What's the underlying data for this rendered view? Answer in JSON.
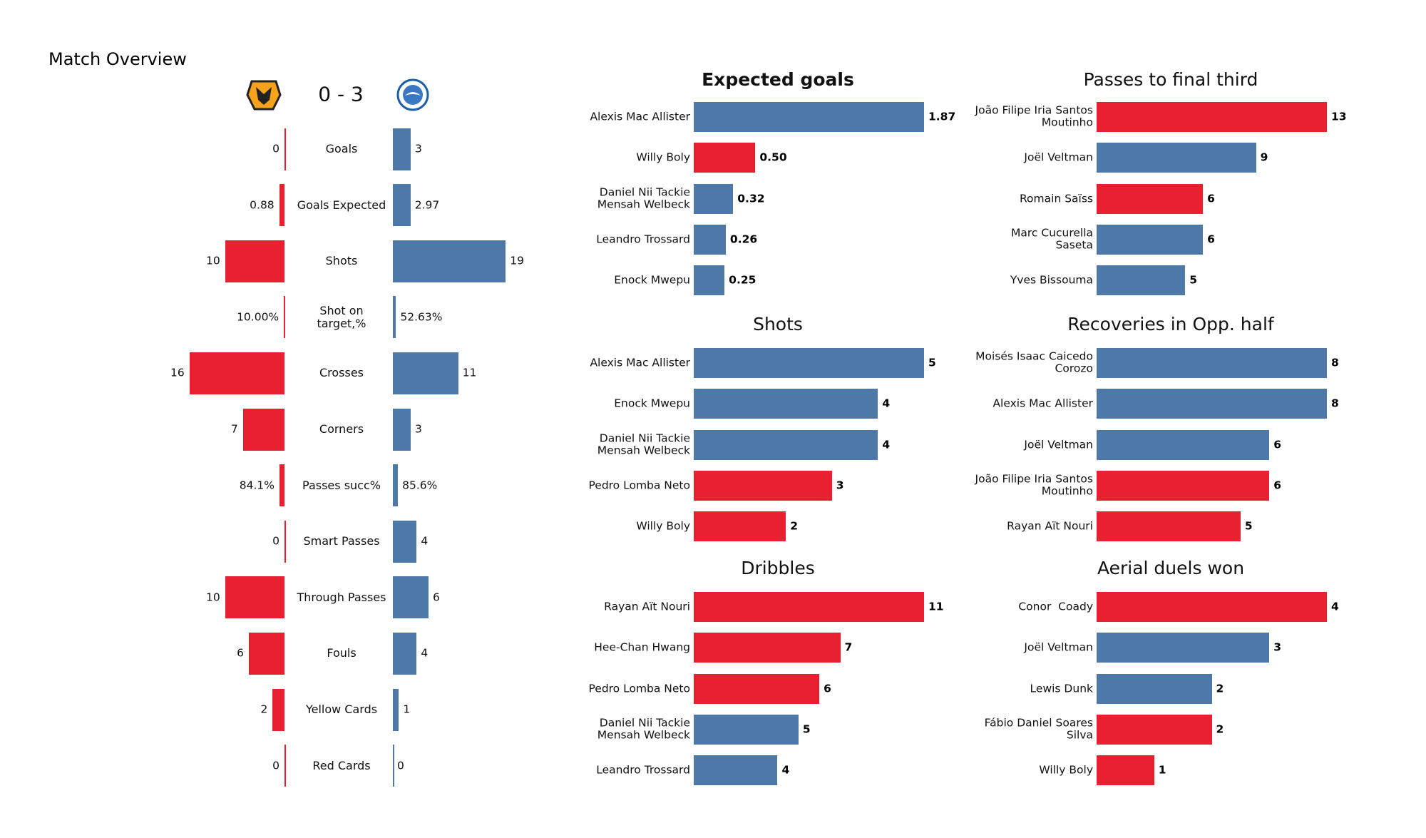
{
  "chart_data": [
    {
      "type": "butterfly",
      "title": "Match Overview",
      "score": "0 - 3",
      "categories": [
        "Goals",
        "Goals Expected",
        "Shots",
        "Shot on\ntarget,%",
        "Crosses",
        "Corners",
        "Passes succ%",
        "Smart Passes",
        "Through Passes",
        "Fouls",
        "Yellow Cards",
        "Red Cards"
      ],
      "series": [
        {
          "color": "#e8202f",
          "values": [
            0,
            0.88,
            10,
            10.0,
            16,
            7,
            84.1,
            0,
            10,
            6,
            2,
            0
          ],
          "value_labels": [
            "0",
            "0.88",
            "10",
            "10.00%",
            "16",
            "7",
            "84.1%",
            "0",
            "10",
            "6",
            "2",
            "0"
          ]
        },
        {
          "color": "#4e78a8",
          "values": [
            3,
            2.97,
            19,
            52.63,
            11,
            3,
            85.6,
            4,
            6,
            4,
            1,
            0
          ],
          "value_labels": [
            "3",
            "2.97",
            "19",
            "52.63%",
            "11",
            "3",
            "85.6%",
            "4",
            "6",
            "4",
            "1",
            "0"
          ]
        }
      ]
    },
    {
      "type": "barh",
      "title": "Expected goals",
      "categories": [
        "Alexis Mac Allister",
        "Willy Boly",
        "Daniel Nii Tackie\nMensah Welbeck",
        "Leandro Trossard",
        "Enock Mwepu"
      ],
      "values": [
        1.87,
        0.5,
        0.32,
        0.26,
        0.25
      ],
      "value_labels": [
        "1.87",
        "0.50",
        "0.32",
        "0.26",
        "0.25"
      ],
      "colors": [
        "#4e78a8",
        "#e8202f",
        "#4e78a8",
        "#4e78a8",
        "#4e78a8"
      ]
    },
    {
      "type": "barh",
      "title": "Passes to final third",
      "categories": [
        "João Filipe Iria Santos\nMoutinho",
        "Joël Veltman",
        "Romain Saïss",
        "Marc Cucurella\nSaseta",
        "Yves Bissouma"
      ],
      "values": [
        13,
        9,
        6,
        6,
        5
      ],
      "colors": [
        "#e8202f",
        "#4e78a8",
        "#e8202f",
        "#4e78a8",
        "#4e78a8"
      ]
    },
    {
      "type": "barh",
      "title": "Shots",
      "categories": [
        "Alexis Mac Allister",
        "Enock Mwepu",
        "Daniel Nii Tackie\nMensah Welbeck",
        "Pedro Lomba Neto",
        "Willy Boly"
      ],
      "values": [
        5,
        4,
        4,
        3,
        2
      ],
      "colors": [
        "#4e78a8",
        "#4e78a8",
        "#4e78a8",
        "#e8202f",
        "#e8202f"
      ]
    },
    {
      "type": "barh",
      "title": "Recoveries in Opp. half",
      "categories": [
        "Moisés Isaac Caicedo\nCorozo",
        "Alexis Mac Allister",
        "Joël Veltman",
        "João Filipe Iria Santos\nMoutinho",
        "Rayan Aït Nouri"
      ],
      "values": [
        8,
        8,
        6,
        6,
        5
      ],
      "colors": [
        "#4e78a8",
        "#4e78a8",
        "#4e78a8",
        "#e8202f",
        "#e8202f"
      ]
    },
    {
      "type": "barh",
      "title": "Dribbles",
      "categories": [
        "Rayan Aït Nouri",
        "Hee-Chan Hwang",
        "Pedro Lomba Neto",
        "Daniel Nii Tackie\nMensah Welbeck",
        "Leandro Trossard"
      ],
      "values": [
        11,
        7,
        6,
        5,
        4
      ],
      "colors": [
        "#e8202f",
        "#e8202f",
        "#e8202f",
        "#4e78a8",
        "#4e78a8"
      ]
    },
    {
      "type": "barh",
      "title": "Aerial duels won",
      "categories": [
        "Conor  Coady",
        "Joël Veltman",
        "Lewis Dunk",
        "Fábio Daniel Soares\nSilva",
        "Willy Boly"
      ],
      "values": [
        4,
        3,
        2,
        2,
        1
      ],
      "colors": [
        "#e8202f",
        "#4e78a8",
        "#4e78a8",
        "#e8202f",
        "#e8202f"
      ]
    }
  ]
}
